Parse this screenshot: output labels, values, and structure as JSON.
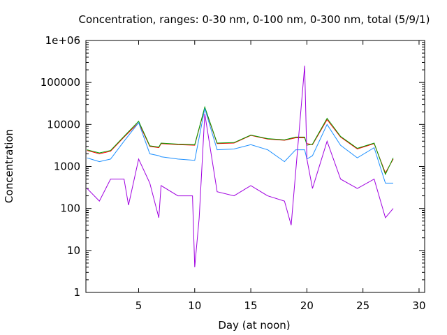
{
  "chart_data": {
    "type": "line",
    "title": "Concentration, ranges: 0-30 nm, 0-100 nm, 0-300 nm, total (5/9/1)",
    "xlabel": "Day (at noon)",
    "ylabel": "Concentration",
    "xlim": [
      0.3,
      30.5
    ],
    "ylim": [
      1,
      1000000
    ],
    "yscale": "log",
    "grid": false,
    "x_ticks": [
      5,
      10,
      15,
      20,
      25,
      30
    ],
    "x_tick_labels": [
      "5",
      "10",
      "15",
      "20",
      "25",
      "30"
    ],
    "y_ticks": [
      1,
      10,
      100,
      1000,
      10000,
      100000,
      1000000
    ],
    "y_tick_labels": [
      "1",
      "10",
      "100",
      "1000",
      "10000",
      "100000",
      "1e+06"
    ],
    "series": [
      {
        "color": "#ff0000",
        "x": [
          0.4,
          1.5,
          2.5,
          3.7,
          5.0,
          6.0,
          6.8,
          7.0,
          8.5,
          10.0,
          10.9,
          12.0,
          13.5,
          15.0,
          16.5,
          18.0,
          19.0,
          19.8,
          20.0,
          20.5,
          21.8,
          23.0,
          24.5,
          26.0,
          27.0,
          27.7
        ],
        "y": [
          2400,
          2000,
          2300,
          5000,
          11000,
          3000,
          2800,
          3500,
          3300,
          3200,
          25000,
          3500,
          3600,
          5500,
          4500,
          4200,
          4800,
          4800,
          3500,
          3300,
          13000,
          5000,
          2600,
          3500,
          700,
          1500
        ]
      },
      {
        "color": "#00a000",
        "x": [
          0.4,
          1.5,
          2.5,
          3.7,
          5.0,
          6.0,
          6.8,
          7.0,
          8.5,
          10.0,
          10.9,
          12.0,
          13.5,
          15.0,
          16.5,
          18.0,
          19.0,
          19.8,
          20.0,
          20.5,
          21.8,
          23.0,
          24.5,
          26.0,
          27.0,
          27.7
        ],
        "y": [
          2500,
          2100,
          2400,
          5200,
          12000,
          3100,
          2900,
          3600,
          3400,
          3300,
          26000,
          3600,
          3700,
          5600,
          4600,
          4300,
          5000,
          5000,
          3200,
          3400,
          14000,
          5200,
          2700,
          3600,
          650,
          1600
        ]
      },
      {
        "color": "#1e90ff",
        "x": [
          0.4,
          1.5,
          2.5,
          3.7,
          5.0,
          6.0,
          6.8,
          7.0,
          8.5,
          10.0,
          10.9,
          12.0,
          13.5,
          15.0,
          16.5,
          18.0,
          19.0,
          19.8,
          20.0,
          20.5,
          21.8,
          23.0,
          24.5,
          26.0,
          27.0,
          27.7
        ],
        "y": [
          1600,
          1300,
          1500,
          4000,
          11000,
          2000,
          1800,
          1700,
          1500,
          1400,
          24000,
          2500,
          2600,
          3300,
          2500,
          1300,
          2500,
          2500,
          1500,
          1800,
          10000,
          3200,
          1600,
          2800,
          400,
          400
        ]
      },
      {
        "color": "#a000e0",
        "x": [
          0.4,
          1.5,
          2.5,
          3.7,
          4.1,
          5.0,
          6.0,
          6.8,
          7.0,
          8.5,
          9.8,
          10.0,
          10.4,
          10.9,
          12.0,
          13.5,
          15.0,
          16.5,
          18.0,
          18.6,
          19.8,
          20.0,
          20.5,
          21.8,
          23.0,
          24.5,
          26.0,
          27.0,
          27.7
        ],
        "y": [
          300,
          150,
          500,
          500,
          120,
          1500,
          400,
          60,
          350,
          200,
          200,
          4,
          60,
          18000,
          250,
          200,
          350,
          200,
          150,
          40,
          250000,
          1500,
          300,
          4000,
          500,
          300,
          500,
          60,
          100
        ]
      }
    ]
  }
}
